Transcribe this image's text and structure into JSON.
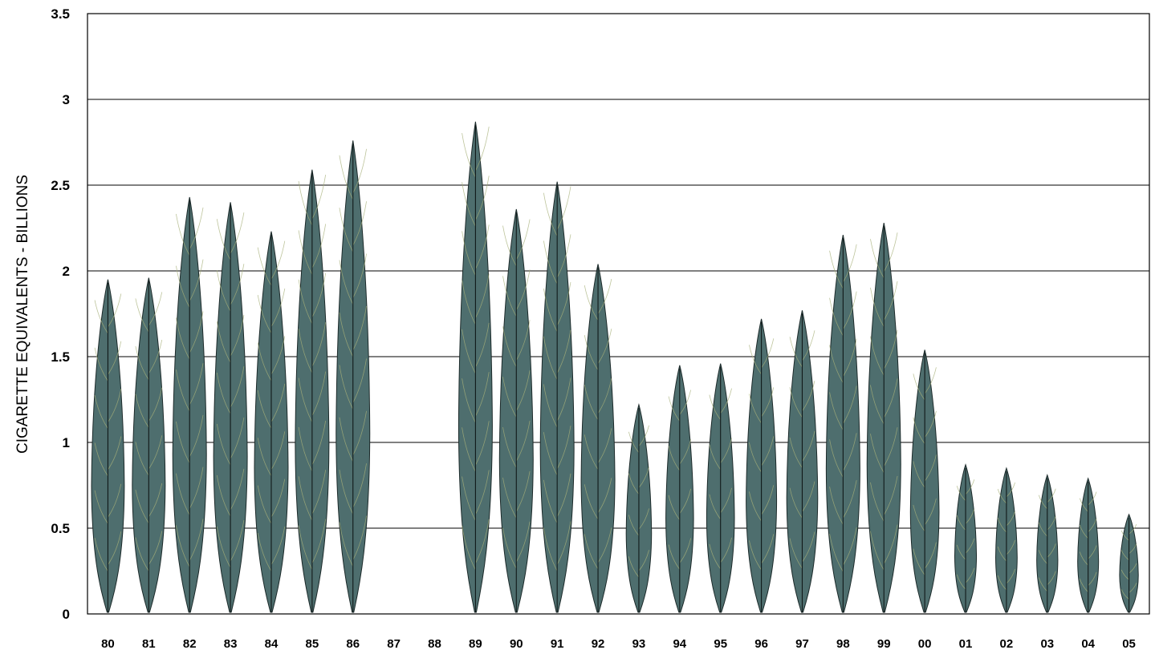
{
  "chart_data": {
    "type": "bar",
    "ylabel": "CIGARETTE  EQUIVALENTS  -  BILLIONS",
    "xlabel": "",
    "ylim": [
      0,
      3.5
    ],
    "yticks": [
      "0",
      "0.5",
      "1",
      "1.5",
      "2",
      "2.5",
      "3",
      "3.5"
    ],
    "grid": true,
    "mark_style": "tobacco-leaf",
    "colors": {
      "leaf": "#4e6e6e",
      "outline": "#1c2a2a",
      "vein": "#a7b07a"
    },
    "categories": [
      "80",
      "81",
      "82",
      "83",
      "84",
      "85",
      "86",
      "87",
      "88",
      "89",
      "90",
      "91",
      "92",
      "93",
      "94",
      "95",
      "96",
      "97",
      "98",
      "99",
      "00",
      "01",
      "02",
      "03",
      "04",
      "05"
    ],
    "values": [
      1.95,
      1.96,
      2.43,
      2.4,
      2.23,
      2.59,
      2.76,
      0,
      0,
      2.87,
      2.36,
      2.52,
      2.04,
      1.22,
      1.45,
      1.46,
      1.72,
      1.77,
      2.21,
      2.28,
      1.54,
      0.87,
      0.85,
      0.81,
      0.79,
      0.58
    ]
  }
}
